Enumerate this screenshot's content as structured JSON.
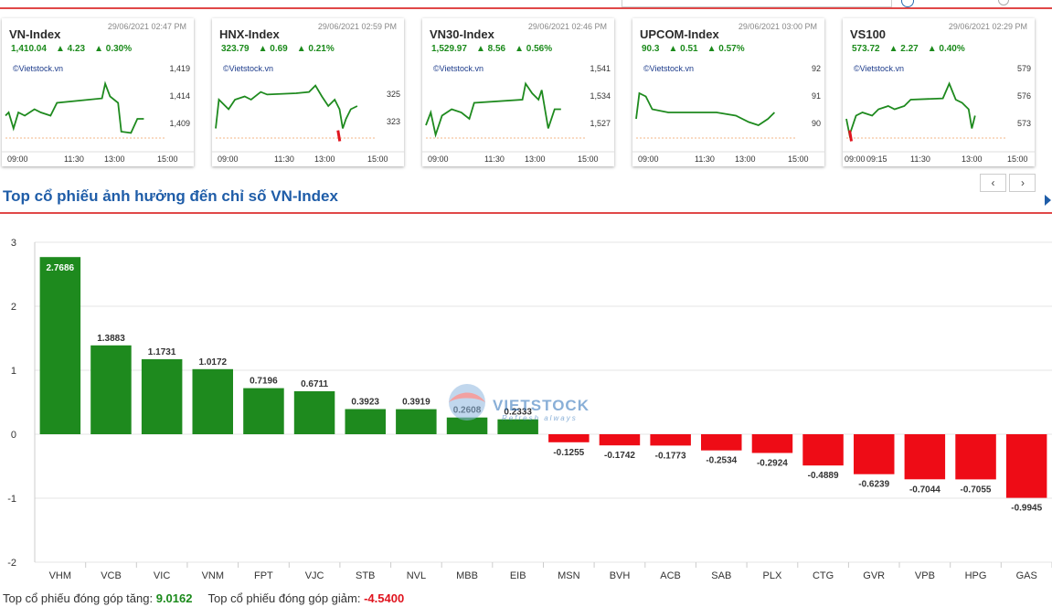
{
  "header": {
    "search_placeholder": ""
  },
  "index_cards": [
    {
      "name": "VN-Index",
      "time": "29/06/2021 02:47 PM",
      "value": "1,410.04",
      "change": "▲ 4.23",
      "pct": "▲ 0.30%",
      "credit": "©Vietstock.vn",
      "yticks": [
        "1,419",
        "1,414",
        "1,409"
      ],
      "xticks": [
        "09:00",
        "11:30",
        "13:00",
        "15:00"
      ]
    },
    {
      "name": "HNX-Index",
      "time": "29/06/2021 02:59 PM",
      "value": "323.79",
      "change": "▲ 0.69",
      "pct": "▲ 0.21%",
      "credit": "©Vietstock.vn",
      "yticks": [
        "325",
        "323"
      ],
      "xticks": [
        "09:00",
        "11:30",
        "13:00",
        "15:00"
      ]
    },
    {
      "name": "VN30-Index",
      "time": "29/06/2021 02:46 PM",
      "value": "1,529.97",
      "change": "▲ 8.56",
      "pct": "▲ 0.56%",
      "credit": "©Vietstock.vn",
      "yticks": [
        "1,541",
        "1,534",
        "1,527"
      ],
      "xticks": [
        "09:00",
        "11:30",
        "13:00",
        "15:00"
      ]
    },
    {
      "name": "UPCOM-Index",
      "time": "29/06/2021 03:00 PM",
      "value": "90.3",
      "change": "▲ 0.51",
      "pct": "▲ 0.57%",
      "credit": "©Vietstock.vn",
      "yticks": [
        "92",
        "91",
        "90"
      ],
      "xticks": [
        "09:00",
        "11:30",
        "13:00",
        "15:00"
      ]
    },
    {
      "name": "VS100",
      "time": "29/06/2021 02:29 PM",
      "value": "573.72",
      "change": "▲ 2.27",
      "pct": "▲ 0.40%",
      "credit": "©Vietstock.vn",
      "yticks": [
        "579",
        "576",
        "573"
      ],
      "xticks": [
        "09:00",
        "09:15",
        "11:30",
        "13:00",
        "15:00"
      ]
    }
  ],
  "nav": {
    "prev": "‹",
    "next": "›"
  },
  "section": {
    "title": "Top cổ phiếu ảnh hưởng đến chỉ số VN-Index"
  },
  "watermark": {
    "text": "VIETSTOCK",
    "sub": "Refresh always"
  },
  "chart_data": {
    "type": "bar",
    "title": "",
    "xlabel": "",
    "ylabel": "",
    "ylim": [
      -2,
      3
    ],
    "yticks": [
      3,
      2,
      1,
      0,
      -1,
      -2
    ],
    "grid": true,
    "categories": [
      "VHM",
      "VCB",
      "VIC",
      "VNM",
      "FPT",
      "VJC",
      "STB",
      "NVL",
      "MBB",
      "EIB",
      "MSN",
      "BVH",
      "ACB",
      "SAB",
      "PLX",
      "CTG",
      "GVR",
      "VPB",
      "HPG",
      "GAS"
    ],
    "values": [
      2.7686,
      1.3883,
      1.1731,
      1.0172,
      0.7196,
      0.6711,
      0.3923,
      0.3919,
      0.2608,
      0.2333,
      -0.1255,
      -0.1742,
      -0.1773,
      -0.2534,
      -0.2924,
      -0.4889,
      -0.6239,
      -0.7044,
      -0.7055,
      -0.9945
    ],
    "labels": [
      "2.7686",
      "1.3883",
      "1.1731",
      "1.0172",
      "0.7196",
      "0.6711",
      "0.3923",
      "0.3919",
      "0.2608",
      "0.2333",
      "-0.1255",
      "-0.1742",
      "-0.1773",
      "-0.2534",
      "-0.2924",
      "-0.4889",
      "-0.6239",
      "-0.7044",
      "-0.7055",
      "-0.9945"
    ],
    "colors": {
      "positive": "#1e8a1e",
      "negative": "#ee0c16"
    }
  },
  "footer": {
    "increase_label": "Top cổ phiếu đóng góp tăng:",
    "increase_value": "9.0162",
    "decrease_label": "Top cổ phiếu đóng góp giảm:",
    "decrease_value": "-4.5400"
  }
}
